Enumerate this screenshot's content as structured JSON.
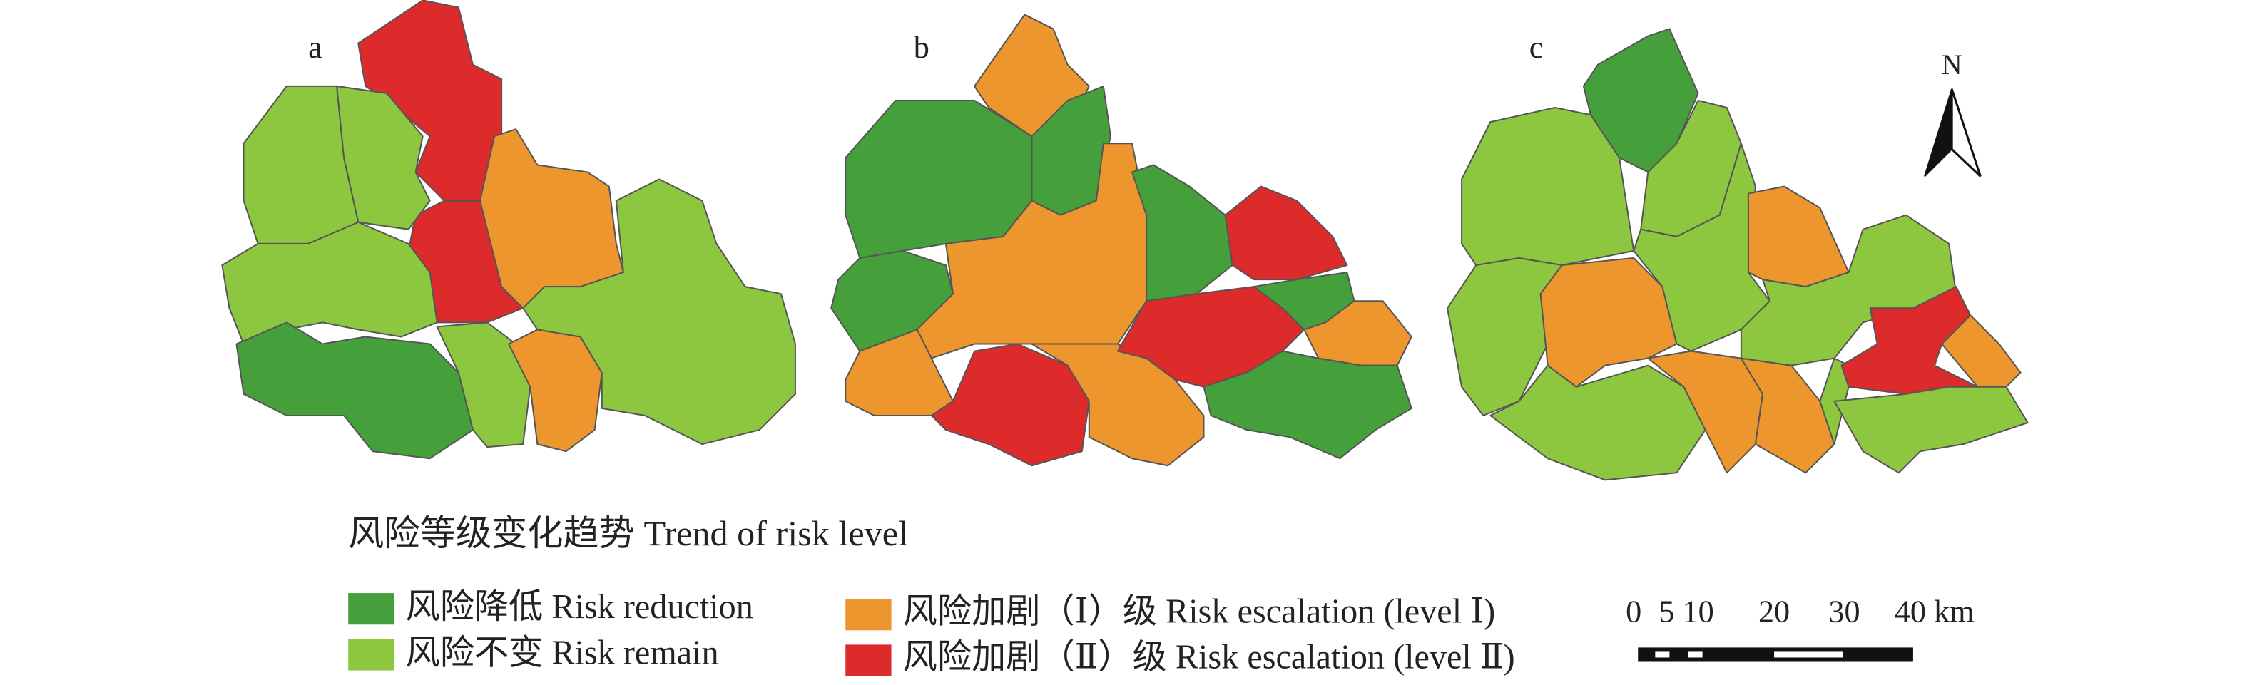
{
  "panels": [
    {
      "label": "a"
    },
    {
      "label": "b"
    },
    {
      "label": "c"
    }
  ],
  "north": "N",
  "legend": {
    "title": "风险等级变化趋势 Trend of risk level",
    "items": [
      {
        "label": "风险降低 Risk reduction",
        "color": "#45a03c"
      },
      {
        "label": "风险不变 Risk remain",
        "color": "#8dc63f"
      },
      {
        "label": "风险加剧（Ⅰ）级 Risk escalation (level Ⅰ)",
        "color": "#ec962d"
      },
      {
        "label": "风险加剧（Ⅱ）级 Risk escalation (level Ⅱ)",
        "color": "#dd2a2a"
      }
    ]
  },
  "scale_bar": {
    "labels": [
      "0",
      "5",
      "10",
      "20",
      "30",
      "40 km"
    ]
  }
}
